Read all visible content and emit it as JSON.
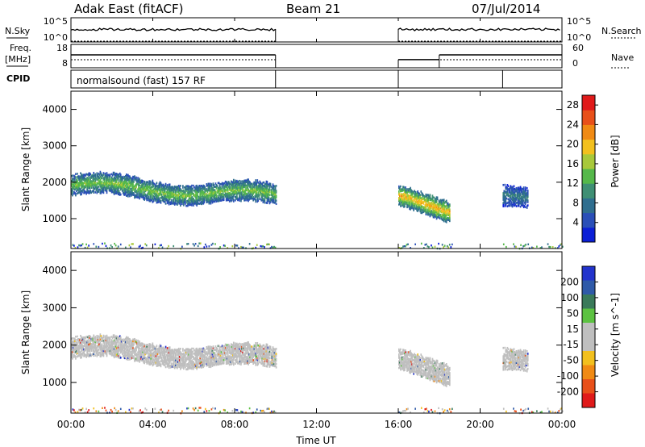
{
  "header": {
    "station": "Adak East (fitACF)",
    "beam": "Beam 21",
    "date": "07/Jul/2014"
  },
  "strip_labels": {
    "nsky": "N.Sky",
    "nsearch": "N.Search",
    "freq_top": "Freq.",
    "freq_unit": "[MHz]",
    "nave": "Nave",
    "cpid": "CPID",
    "cpid_value": "normalsound (fast) 157 RF"
  },
  "strip_ticks": {
    "noise_left_top": "10^5",
    "noise_left_bottom": "10^0",
    "noise_right_top": "10^5",
    "noise_right_bottom": "10^0",
    "freq_left_top": "18",
    "freq_left_bottom": "8",
    "nave_right_top": "60",
    "nave_right_bottom": "0"
  },
  "colors": {
    "power_scale": [
      "#0b1fd6",
      "#2a4fb8",
      "#2f6e8f",
      "#3f8f74",
      "#55b84a",
      "#a8c83a",
      "#f2c01e",
      "#f08a14",
      "#e8501a",
      "#e01a1a"
    ],
    "velocity_scale": [
      "#2233cc",
      "#2f5aa8",
      "#3a7a5a",
      "#5cc241",
      "#bfbfbf",
      "#bfbfbf",
      "#f2c01e",
      "#f08a14",
      "#e8501a",
      "#e01a1a"
    ]
  },
  "chart_data": [
    {
      "type": "heatmap",
      "title": "",
      "xlabel": "Time UT",
      "ylabel": "Slant Range [km]",
      "x_ticks": [
        "00:00",
        "04:00",
        "08:00",
        "12:00",
        "16:00",
        "20:00",
        "00:00"
      ],
      "xlim_hours": [
        0,
        24
      ],
      "y_ticks": [
        "1000",
        "2000",
        "3000",
        "4000"
      ],
      "ylim": [
        180,
        4500
      ],
      "colorbar_label": "Power [dB]",
      "colorbar_ticks": [
        "4",
        "8",
        "12",
        "16",
        "20",
        "24",
        "28"
      ],
      "colorbar_range": [
        0,
        30
      ],
      "data_gaps_hours": [
        [
          10.0,
          16.0
        ],
        [
          18.6,
          21.1
        ]
      ],
      "echo_bands": [
        {
          "t_start": 0.0,
          "t_end": 10.0,
          "range_start_km": 1950,
          "range_end_km": 1650,
          "typical_power_db": 10
        },
        {
          "t_start": 16.0,
          "t_end": 18.5,
          "range_start_km": 1550,
          "range_end_km": 1300,
          "typical_power_db": 14
        },
        {
          "t_start": 21.1,
          "t_end": 22.3,
          "range_start_km": 1650,
          "range_end_km": 1500,
          "typical_power_db": 6
        }
      ]
    },
    {
      "type": "heatmap",
      "title": "",
      "xlabel": "Time UT",
      "ylabel": "Slant Range [km]",
      "x_ticks": [
        "00:00",
        "04:00",
        "08:00",
        "12:00",
        "16:00",
        "20:00",
        "00:00"
      ],
      "xlim_hours": [
        0,
        24
      ],
      "y_ticks": [
        "1000",
        "2000",
        "3000",
        "4000"
      ],
      "ylim": [
        180,
        4500
      ],
      "colorbar_label": "Velocity [m s^-1]",
      "colorbar_ticks": [
        "200",
        "100",
        "50",
        "15",
        "-15",
        "-50",
        "-100",
        "-200"
      ],
      "colorbar_range": [
        -250,
        250
      ],
      "data_gaps_hours": [
        [
          10.0,
          16.0
        ],
        [
          18.6,
          21.1
        ]
      ],
      "dominant_velocity": "ground scatter (gray, |v| < 15 m/s)"
    }
  ],
  "strips": {
    "noise": {
      "segments": [
        [
          0.0,
          10.0
        ],
        [
          16.0,
          24.0
        ]
      ]
    },
    "frequency_mhz": {
      "segments": [
        [
          0.0,
          10.0,
          13.5
        ],
        [
          16.0,
          18.0,
          11.5
        ],
        [
          18.0,
          24.0,
          13.5
        ]
      ]
    },
    "cpid": {
      "change_hours": [
        0.0,
        10.0,
        16.0,
        21.1
      ]
    }
  }
}
